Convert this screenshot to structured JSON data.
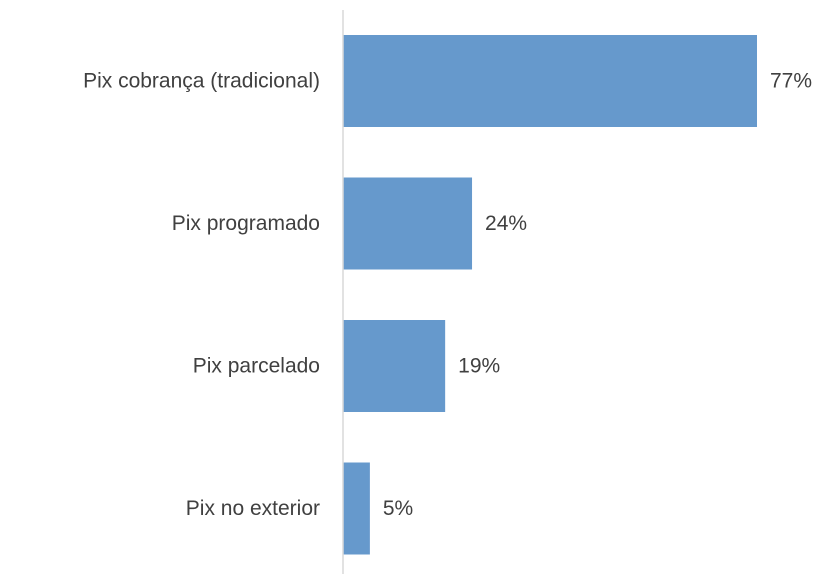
{
  "chart_data": {
    "type": "hbar",
    "categories": [
      "Pix cobrança (tradicional)",
      "Pix programado",
      "Pix parcelado",
      "Pix no exterior"
    ],
    "values": [
      77,
      24,
      19,
      5
    ],
    "value_labels": [
      "77%",
      "24%",
      "19%",
      "5%"
    ],
    "color": "#6699cc"
  }
}
